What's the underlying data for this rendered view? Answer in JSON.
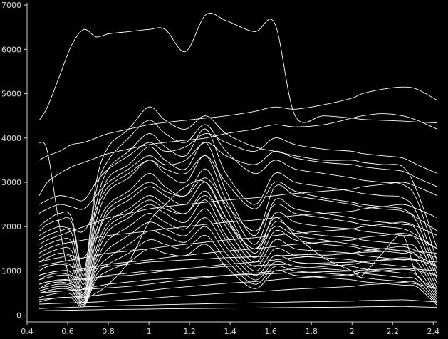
{
  "chart_data": {
    "type": "line",
    "title": "",
    "xlabel": "",
    "ylabel": "",
    "xlim": [
      0.4,
      2.42
    ],
    "ylim": [
      -150,
      7050
    ],
    "grid": false,
    "background": "#000000",
    "line_color": "#ffffff",
    "x_ticks": [
      0.4,
      0.6,
      0.8,
      1,
      1.2,
      1.4,
      1.6,
      1.8,
      2,
      2.2,
      2.4
    ],
    "x_tick_labels": [
      "0.4",
      "0.6",
      "0.8",
      "1",
      "1.2",
      "1.4",
      "1.6",
      "1.8",
      "2",
      "2.2",
      "2.4"
    ],
    "y_ticks": [
      0,
      1000,
      2000,
      3000,
      4000,
      5000,
      6000,
      7000
    ],
    "y_tick_labels": [
      "0",
      "1000",
      "2000",
      "3000",
      "4000",
      "5000",
      "6000",
      "7000"
    ],
    "x": [
      0.46,
      0.5,
      0.56,
      0.62,
      0.68,
      0.74,
      0.8,
      0.9,
      1.0,
      1.08,
      1.18,
      1.28,
      1.38,
      1.52,
      1.62,
      1.72,
      1.86,
      2.0,
      2.05,
      2.15,
      2.25,
      2.32,
      2.42
    ],
    "series": [
      {
        "values": [
          4400,
          4700,
          5400,
          6100,
          6450,
          6280,
          6350,
          6400,
          6450,
          6450,
          5950,
          6780,
          6650,
          6400,
          6580,
          4500,
          4500,
          4450,
          4420,
          4400,
          4380,
          4360,
          4340
        ]
      },
      {
        "values": [
          3900,
          3700,
          2000,
          600,
          400,
          500,
          700,
          1200,
          2100,
          2500,
          2900,
          3000,
          2200,
          1500,
          2200,
          1800,
          1300,
          1000,
          900,
          1400,
          1800,
          900,
          600
        ]
      },
      {
        "values": [
          3500,
          3600,
          3700,
          3850,
          3900,
          4000,
          4100,
          4200,
          4300,
          4350,
          4400,
          4450,
          4500,
          4600,
          4700,
          4650,
          4750,
          4900,
          5000,
          5100,
          5150,
          5100,
          4850
        ]
      },
      {
        "values": [
          2700,
          3000,
          3200,
          3350,
          3450,
          3550,
          3650,
          3750,
          3850,
          3900,
          3950,
          4000,
          4100,
          4200,
          4300,
          4250,
          4300,
          4450,
          4500,
          4550,
          4500,
          4400,
          4200
        ]
      },
      {
        "values": [
          2000,
          2150,
          2300,
          2200,
          1000,
          3000,
          3800,
          4200,
          4700,
          4400,
          4200,
          4500,
          4100,
          3800,
          3700,
          3600,
          3500,
          3500,
          3450,
          3400,
          3350,
          2800,
          1500
        ]
      },
      {
        "values": [
          1900,
          2050,
          2150,
          2100,
          900,
          2800,
          3500,
          4000,
          4400,
          4100,
          3900,
          4300,
          3700,
          3200,
          3500,
          3300,
          3200,
          3100,
          3050,
          3000,
          2950,
          2600,
          1200
        ]
      },
      {
        "values": [
          1700,
          1800,
          1900,
          1850,
          800,
          2500,
          3300,
          3700,
          4100,
          3800,
          3600,
          4200,
          3200,
          2500,
          3200,
          3000,
          2900,
          2800,
          2750,
          2700,
          2650,
          2300,
          1000
        ]
      },
      {
        "values": [
          1500,
          1600,
          1700,
          1650,
          700,
          2300,
          3100,
          3400,
          3800,
          3500,
          3300,
          3900,
          2800,
          1800,
          2900,
          2700,
          2600,
          2500,
          2450,
          2400,
          2350,
          2100,
          900
        ]
      },
      {
        "values": [
          1300,
          1400,
          1500,
          1450,
          600,
          2100,
          2800,
          3100,
          3500,
          3200,
          3000,
          3600,
          2600,
          1600,
          2600,
          2400,
          2300,
          2200,
          2150,
          2100,
          2050,
          1900,
          800
        ]
      },
      {
        "values": [
          1200,
          1250,
          1300,
          1280,
          500,
          1900,
          2500,
          2800,
          3200,
          2900,
          2700,
          3300,
          2400,
          1400,
          2300,
          2100,
          2000,
          1950,
          1900,
          1850,
          1800,
          1700,
          700
        ]
      },
      {
        "values": [
          1000,
          1100,
          1150,
          1100,
          450,
          1700,
          2300,
          2600,
          2900,
          2700,
          2500,
          3000,
          2200,
          1300,
          2100,
          1900,
          1800,
          1750,
          1700,
          1650,
          1600,
          1500,
          600
        ]
      },
      {
        "values": [
          900,
          950,
          1000,
          950,
          400,
          1500,
          2100,
          2400,
          2700,
          2500,
          2300,
          2800,
          2000,
          1200,
          1900,
          1700,
          1600,
          1550,
          1500,
          1450,
          1400,
          1350,
          500
        ]
      },
      {
        "values": [
          800,
          850,
          900,
          850,
          350,
          1300,
          1900,
          2200,
          2500,
          2300,
          2100,
          2600,
          1800,
          1100,
          1700,
          1500,
          1450,
          1400,
          1350,
          1300,
          1250,
          1200,
          450
        ]
      },
      {
        "values": [
          700,
          750,
          800,
          750,
          300,
          1200,
          1700,
          2000,
          2300,
          2100,
          1950,
          2400,
          1700,
          1000,
          1500,
          1350,
          1300,
          1250,
          1200,
          1150,
          1100,
          1050,
          400
        ]
      },
      {
        "values": [
          600,
          650,
          700,
          650,
          280,
          1100,
          1500,
          1800,
          2100,
          1950,
          1800,
          2200,
          1550,
          900,
          1350,
          1200,
          1150,
          1100,
          1050,
          1000,
          950,
          900,
          350
        ]
      },
      {
        "values": [
          500,
          550,
          600,
          560,
          250,
          1000,
          1300,
          1600,
          1900,
          1800,
          1650,
          2000,
          1400,
          800,
          1200,
          1100,
          1050,
          1000,
          950,
          900,
          850,
          800,
          300
        ]
      },
      {
        "values": [
          400,
          450,
          500,
          470,
          220,
          900,
          1150,
          1400,
          1700,
          1600,
          1500,
          1800,
          1250,
          700,
          1100,
          1000,
          950,
          900,
          850,
          800,
          760,
          720,
          260
        ]
      },
      {
        "values": [
          300,
          350,
          400,
          380,
          200,
          800,
          1000,
          1200,
          1500,
          1400,
          1350,
          1600,
          1100,
          600,
          1000,
          900,
          850,
          800,
          760,
          720,
          680,
          640,
          220
        ]
      },
      {
        "values": [
          1600,
          1700,
          1800,
          1900,
          2000,
          2100,
          2200,
          2300,
          2400,
          2450,
          2500,
          2550,
          2600,
          2650,
          2700,
          2750,
          2800,
          2850,
          2900,
          2950,
          3000,
          2900,
          2700
        ]
      },
      {
        "values": [
          1400,
          1500,
          1600,
          1650,
          1700,
          1750,
          1800,
          1850,
          1900,
          1950,
          2000,
          2050,
          2100,
          2150,
          2200,
          2250,
          2300,
          2350,
          2400,
          2450,
          2500,
          2400,
          2200
        ]
      },
      {
        "values": [
          1100,
          1150,
          1200,
          1250,
          1300,
          1350,
          1400,
          1450,
          1500,
          1550,
          1600,
          1650,
          1700,
          1750,
          1800,
          1850,
          1900,
          1950,
          2000,
          2050,
          2100,
          2000,
          1800
        ]
      },
      {
        "values": [
          900,
          950,
          1000,
          1000,
          1050,
          1100,
          1150,
          1200,
          1250,
          1300,
          1350,
          1400,
          1450,
          1500,
          1550,
          1600,
          1650,
          1700,
          1750,
          1800,
          1850,
          1750,
          1500
        ]
      },
      {
        "values": [
          700,
          750,
          780,
          800,
          820,
          850,
          880,
          900,
          950,
          1000,
          1050,
          1100,
          1150,
          1200,
          1250,
          1300,
          1350,
          1400,
          1450,
          1500,
          1550,
          1450,
          1300
        ]
      },
      {
        "values": [
          500,
          520,
          540,
          560,
          580,
          600,
          620,
          650,
          700,
          750,
          800,
          850,
          900,
          950,
          1000,
          1050,
          1100,
          1150,
          1200,
          1250,
          1300,
          1250,
          1100
        ]
      },
      {
        "values": [
          350,
          370,
          390,
          410,
          430,
          450,
          480,
          520,
          560,
          600,
          640,
          680,
          720,
          760,
          800,
          840,
          880,
          920,
          960,
          1000,
          1040,
          1000,
          900
        ]
      },
      {
        "values": [
          250,
          260,
          270,
          280,
          290,
          300,
          320,
          350,
          380,
          410,
          440,
          470,
          500,
          530,
          560,
          590,
          620,
          650,
          680,
          710,
          740,
          700,
          600
        ]
      },
      {
        "values": [
          150,
          160,
          170,
          180,
          190,
          200,
          210,
          220,
          230,
          240,
          250,
          260,
          270,
          280,
          290,
          300,
          310,
          320,
          330,
          340,
          350,
          330,
          300
        ]
      },
      {
        "values": [
          100,
          105,
          110,
          115,
          120,
          125,
          130,
          135,
          140,
          145,
          150,
          155,
          160,
          165,
          170,
          175,
          180,
          185,
          190,
          195,
          200,
          190,
          180
        ]
      },
      {
        "values": [
          600,
          700,
          750,
          700,
          600,
          650,
          700,
          750,
          800,
          820,
          850,
          870,
          900,
          920,
          940,
          960,
          980,
          1000,
          1020,
          1040,
          1060,
          1040,
          1000
        ]
      },
      {
        "values": [
          800,
          900,
          950,
          900,
          800,
          850,
          900,
          950,
          1000,
          1020,
          1050,
          1070,
          1100,
          1120,
          1140,
          1160,
          1180,
          1200,
          1220,
          1240,
          1260,
          1240,
          1200
        ]
      },
      {
        "values": [
          1000,
          1100,
          1150,
          1100,
          1000,
          1050,
          1100,
          1150,
          1200,
          1220,
          1250,
          1270,
          1300,
          1320,
          1340,
          1360,
          1380,
          1400,
          1420,
          1440,
          1460,
          1440,
          1400
        ]
      },
      {
        "values": [
          2300,
          2400,
          2500,
          2450,
          2400,
          2700,
          3000,
          3300,
          3600,
          3400,
          3500,
          3900,
          3600,
          3400,
          3700,
          3550,
          3450,
          3400,
          3350,
          3300,
          3250,
          3100,
          2900
        ]
      },
      {
        "values": [
          2500,
          2600,
          2700,
          2650,
          2600,
          3000,
          3300,
          3600,
          3900,
          3700,
          3800,
          4100,
          3900,
          3700,
          4000,
          3850,
          3750,
          3700,
          3650,
          3600,
          3550,
          3400,
          3200
        ]
      },
      {
        "values": [
          1800,
          1900,
          2000,
          1950,
          1900,
          2400,
          2900,
          3200,
          3500,
          3300,
          3200,
          3600,
          3000,
          2400,
          3000,
          2800,
          2650,
          2550,
          2500,
          2450,
          2400,
          2200,
          1900
        ]
      },
      {
        "values": [
          1200,
          1300,
          1400,
          1350,
          1300,
          1800,
          2400,
          2700,
          3000,
          2800,
          2700,
          3100,
          2500,
          1900,
          2500,
          2300,
          2200,
          2100,
          2050,
          2000,
          1950,
          1800,
          1500
        ]
      },
      {
        "values": [
          550,
          600,
          650,
          620,
          500,
          1400,
          2000,
          2300,
          2600,
          2400,
          2300,
          2700,
          2100,
          1500,
          2000,
          1800,
          1700,
          1600,
          1550,
          1500,
          1450,
          1350,
          1100
        ]
      }
    ]
  }
}
